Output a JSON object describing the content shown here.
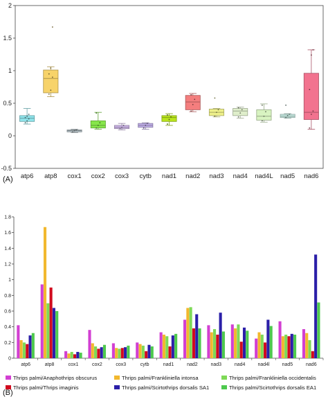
{
  "panels": {
    "a": "(A)",
    "b": "(B)"
  },
  "chart_data": [
    {
      "type": "box",
      "categories": [
        "atp6",
        "atp8",
        "cox1",
        "cox2",
        "cox3",
        "cytb",
        "nad1",
        "nad2",
        "nad3",
        "nad4",
        "nad4L",
        "nad5",
        "nad6"
      ],
      "ylim": [
        -0.5,
        2.0
      ],
      "yticks": [
        "-0.5",
        "0",
        "0.5",
        "1",
        "1.5",
        "2"
      ],
      "grid": false,
      "colors": [
        "#8fe3ea",
        "#f7d36a",
        "#b6c3c9",
        "#86e64a",
        "#cdb6e8",
        "#c0aee8",
        "#b8e41c",
        "#f47e7e",
        "#eef08a",
        "#dfeecb",
        "#d8f3c1",
        "#c6e9e1",
        "#f2738f"
      ],
      "boxes": [
        {
          "min": 0.18,
          "q1": 0.22,
          "median": 0.27,
          "q3": 0.31,
          "max": 0.42,
          "points": [
            0.2,
            0.23,
            0.26,
            0.28,
            0.3,
            0.33
          ]
        },
        {
          "min": 0.6,
          "q1": 0.66,
          "median": 0.88,
          "q3": 1.01,
          "max": 1.06,
          "points": [
            0.64,
            0.7,
            0.9,
            0.95,
            1.04,
            1.67
          ]
        },
        {
          "min": 0.05,
          "q1": 0.06,
          "median": 0.08,
          "q3": 0.09,
          "max": 0.1,
          "points": [
            0.06,
            0.08,
            0.09
          ]
        },
        {
          "min": 0.1,
          "q1": 0.12,
          "median": 0.16,
          "q3": 0.23,
          "max": 0.36,
          "points": [
            0.12,
            0.16,
            0.2,
            0.35
          ]
        },
        {
          "min": 0.09,
          "q1": 0.11,
          "median": 0.13,
          "q3": 0.16,
          "max": 0.19,
          "points": [
            0.11,
            0.13,
            0.16
          ]
        },
        {
          "min": 0.1,
          "q1": 0.13,
          "median": 0.16,
          "q3": 0.19,
          "max": 0.2,
          "points": [
            0.12,
            0.16,
            0.19
          ]
        },
        {
          "min": 0.16,
          "q1": 0.22,
          "median": 0.28,
          "q3": 0.31,
          "max": 0.34,
          "points": [
            0.18,
            0.25,
            0.29,
            0.32
          ]
        },
        {
          "min": 0.37,
          "q1": 0.4,
          "median": 0.52,
          "q3": 0.62,
          "max": 0.65,
          "points": [
            0.38,
            0.48,
            0.56,
            0.63
          ]
        },
        {
          "min": 0.29,
          "q1": 0.31,
          "median": 0.36,
          "q3": 0.41,
          "max": 0.42,
          "points": [
            0.3,
            0.36,
            0.4,
            0.58
          ]
        },
        {
          "min": 0.27,
          "q1": 0.31,
          "median": 0.38,
          "q3": 0.42,
          "max": 0.44,
          "points": [
            0.29,
            0.35,
            0.4,
            0.43
          ]
        },
        {
          "min": 0.21,
          "q1": 0.24,
          "median": 0.3,
          "q3": 0.4,
          "max": 0.49,
          "points": [
            0.23,
            0.3,
            0.37,
            0.47
          ]
        },
        {
          "min": 0.27,
          "q1": 0.28,
          "median": 0.3,
          "q3": 0.33,
          "max": 0.34,
          "points": [
            0.28,
            0.31,
            0.33,
            0.47
          ]
        },
        {
          "min": 0.1,
          "q1": 0.25,
          "median": 0.36,
          "q3": 0.96,
          "max": 1.32,
          "points": [
            0.12,
            0.33,
            0.38,
            0.71,
            1.24,
            1.32
          ]
        }
      ]
    },
    {
      "type": "bar",
      "categories": [
        "atp6",
        "atp8",
        "cox1",
        "cox2",
        "cox3",
        "cytb",
        "nad1",
        "nad2",
        "nad3",
        "nad4",
        "nad4l",
        "nad5",
        "nad6"
      ],
      "ylim": [
        0,
        1.8
      ],
      "yticks": [
        "0",
        "0.2",
        "0.4",
        "0.6",
        "0.8",
        "1",
        "1.2",
        "1.4",
        "1.6",
        "1.8"
      ],
      "grid": false,
      "legend_position": "bottom",
      "series": [
        {
          "name": "Thrips palmi/Anaphothrips obscurus",
          "color": "#d23fd2",
          "values": [
            0.42,
            0.94,
            0.09,
            0.36,
            0.19,
            0.2,
            0.33,
            0.49,
            0.42,
            0.43,
            0.25,
            0.47,
            0.37
          ]
        },
        {
          "name": "Thrips palmi/Frankliniella intonsa",
          "color": "#f2b82e",
          "values": [
            0.23,
            1.67,
            0.06,
            0.19,
            0.13,
            0.18,
            0.3,
            0.64,
            0.33,
            0.38,
            0.33,
            0.28,
            0.32
          ]
        },
        {
          "name": "Thrips palmi/Frankliniella occidentalis",
          "color": "#7ed957",
          "values": [
            0.2,
            0.7,
            0.08,
            0.15,
            0.12,
            0.16,
            0.28,
            0.65,
            0.37,
            0.43,
            0.3,
            0.3,
            0.23
          ]
        },
        {
          "name": "Thrips palmi/Thrips imaginis",
          "color": "#d10a1e",
          "values": [
            0.18,
            0.9,
            0.05,
            0.12,
            0.13,
            0.09,
            0.15,
            0.38,
            0.3,
            0.21,
            0.2,
            0.28,
            0.09
          ]
        },
        {
          "name": "Thrips palmi/Scirtothrips dorsalis SA1",
          "color": "#2b1fa8",
          "values": [
            0.29,
            0.64,
            0.08,
            0.14,
            0.14,
            0.17,
            0.29,
            0.56,
            0.58,
            0.39,
            0.49,
            0.31,
            1.32
          ]
        },
        {
          "name": "Thrips palmi/Scirtothrips dorsalis EA1",
          "color": "#4ec94e",
          "values": [
            0.32,
            0.6,
            0.07,
            0.17,
            0.16,
            0.15,
            0.31,
            0.38,
            0.34,
            0.35,
            0.41,
            0.3,
            0.71
          ]
        }
      ]
    }
  ]
}
